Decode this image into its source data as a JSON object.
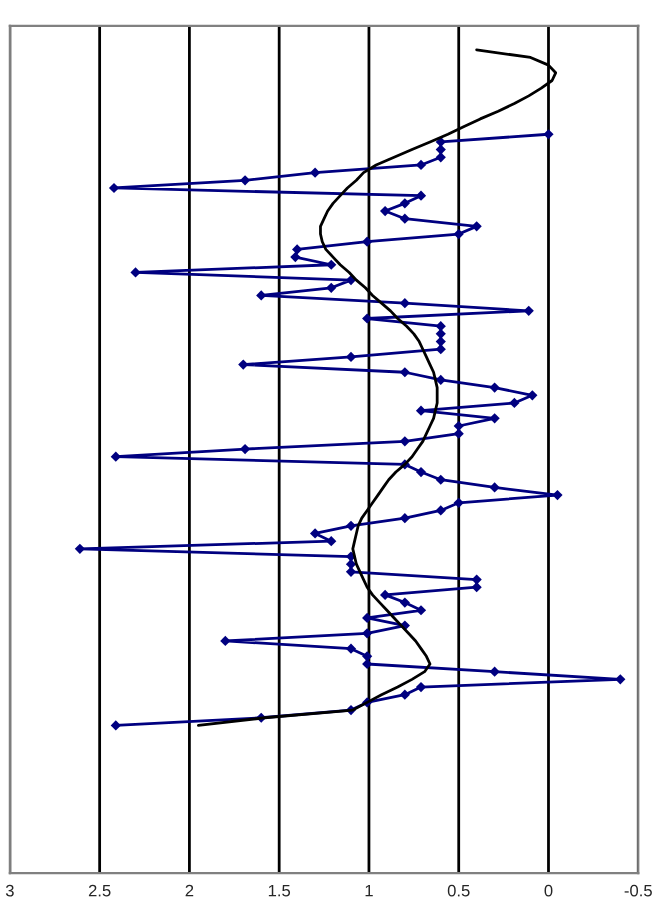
{
  "chart_data": {
    "type": "line",
    "orientation": "horizontal",
    "xlim": [
      3,
      -0.5
    ],
    "xticks": [
      3,
      2.5,
      2,
      1.5,
      1,
      0.5,
      0,
      -0.5
    ],
    "grid": "x",
    "categories": [
      null,
      null,
      null,
      null,
      null,
      null,
      null,
      null,
      null,
      null,
      null,
      null,
      null,
      null,
      null,
      null,
      null,
      null,
      null,
      null,
      null,
      null,
      null,
      null,
      null,
      null,
      null,
      null,
      null,
      null,
      null,
      null,
      null,
      null,
      null,
      null,
      null,
      null,
      null,
      null,
      null,
      null,
      null,
      null,
      null,
      null,
      null,
      null,
      null,
      null,
      null,
      null,
      null,
      null,
      null,
      null,
      null,
      null,
      null,
      null,
      null,
      null,
      null,
      null,
      null,
      null,
      null,
      null,
      null,
      null,
      null,
      null,
      null,
      null,
      null,
      null,
      null,
      null,
      null,
      null,
      null,
      null,
      null,
      null,
      null,
      null,
      null,
      null,
      null
    ],
    "series": [
      {
        "color": "#000080",
        "marker": "diamond",
        "values": [
          null,
          null,
          null,
          null,
          null,
          null,
          null,
          null,
          null,
          null,
          null,
          0.0,
          0.6,
          0.6,
          0.6,
          0.71,
          1.3,
          1.69,
          2.42,
          0.71,
          0.8,
          0.91,
          0.8,
          0.4,
          0.5,
          1.01,
          1.4,
          1.41,
          1.21,
          2.3,
          1.1,
          1.21,
          1.6,
          0.8,
          0.11,
          1.01,
          0.6,
          0.6,
          0.6,
          0.6,
          1.1,
          1.7,
          0.8,
          0.6,
          0.3,
          0.09,
          0.19,
          0.71,
          0.3,
          0.5,
          0.5,
          0.8,
          1.69,
          2.41,
          0.8,
          0.71,
          0.6,
          0.3,
          -0.05,
          0.5,
          0.6,
          0.8,
          1.1,
          1.3,
          1.21,
          2.61,
          1.1,
          1.1,
          1.1,
          0.4,
          0.4,
          0.91,
          0.8,
          0.71,
          1.01,
          0.8,
          1.01,
          1.8,
          1.1,
          1.01,
          1.01,
          0.3,
          -0.4,
          0.71,
          0.8,
          1.01,
          1.1,
          1.6,
          2.41
        ]
      },
      {
        "color": "#000000",
        "marker": "none",
        "values": [
          0.4,
          0.1,
          0.0,
          -0.04,
          -0.02,
          0.04,
          0.11,
          0.19,
          0.28,
          0.38,
          0.47,
          0.56,
          0.66,
          0.76,
          0.86,
          0.96,
          1.03,
          1.07,
          1.12,
          1.16,
          1.2,
          1.23,
          1.25,
          1.27,
          1.27,
          1.26,
          1.24,
          1.2,
          1.16,
          1.11,
          1.07,
          1.02,
          0.98,
          0.93,
          0.88,
          0.84,
          0.79,
          0.75,
          0.72,
          0.7,
          0.68,
          0.66,
          0.64,
          0.63,
          0.62,
          0.62,
          0.62,
          0.63,
          0.64,
          0.66,
          0.68,
          0.7,
          0.73,
          0.76,
          0.8,
          0.85,
          0.89,
          0.92,
          0.95,
          0.98,
          1.01,
          1.04,
          1.06,
          1.07,
          1.08,
          1.09,
          1.08,
          1.07,
          1.05,
          1.03,
          1.01,
          0.98,
          0.94,
          0.9,
          0.86,
          0.82,
          0.78,
          0.74,
          0.71,
          0.68,
          0.66,
          0.69,
          0.76,
          0.84,
          0.93,
          1.01,
          1.09,
          1.58,
          1.95
        ]
      }
    ]
  }
}
